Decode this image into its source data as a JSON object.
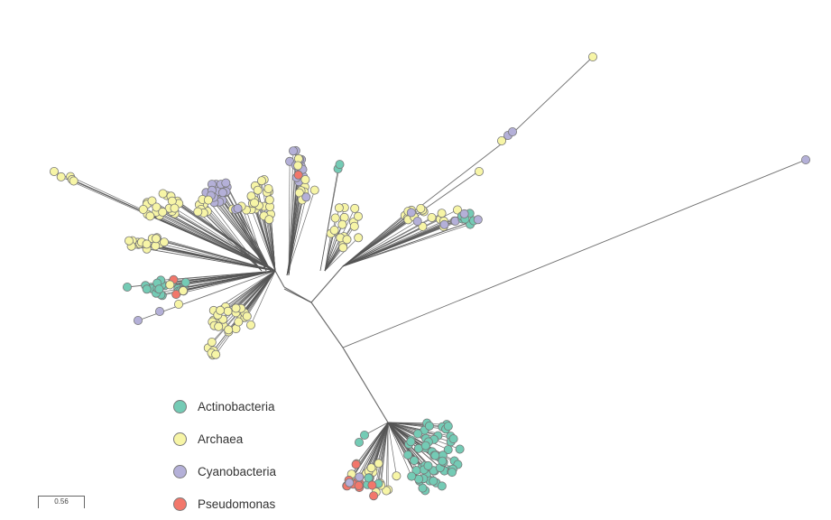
{
  "legend": {
    "items": [
      {
        "label": "Actinobacteria",
        "color": "#74cbb5"
      },
      {
        "label": "Archaea",
        "color": "#f7f5a6"
      },
      {
        "label": "Cyanobacteria",
        "color": "#b4b0d8"
      },
      {
        "label": "Pseudomonas",
        "color": "#f2776b"
      }
    ]
  },
  "scale": {
    "label": "0.56"
  },
  "colors": {
    "branch": "#555555",
    "node_stroke": "#777777"
  }
}
